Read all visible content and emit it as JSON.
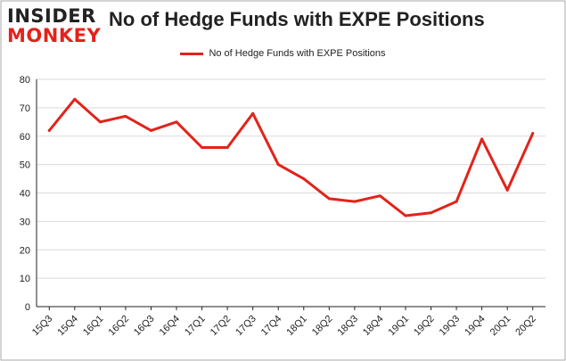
{
  "header": {
    "logo_top": "INSIDER",
    "logo_bottom": "MONKEY",
    "title": "No of Hedge Funds with EXPE Positions"
  },
  "colors": {
    "series": "#e2231a",
    "grid": "#d9d9d9",
    "axis": "#222222",
    "frame": "#aaaaaa"
  },
  "chart_data": {
    "type": "line",
    "title": "No of Hedge Funds with EXPE Positions",
    "xlabel": "",
    "ylabel": "",
    "ylim": [
      0,
      80
    ],
    "yticks": [
      0,
      10,
      20,
      30,
      40,
      50,
      60,
      70,
      80
    ],
    "grid": true,
    "legend": "top-center",
    "categories": [
      "15Q3",
      "15Q4",
      "16Q1",
      "16Q2",
      "16Q3",
      "16Q4",
      "17Q1",
      "17Q2",
      "17Q3",
      "17Q4",
      "18Q1",
      "18Q2",
      "18Q3",
      "18Q4",
      "19Q1",
      "19Q2",
      "19Q3",
      "19Q4",
      "20Q1",
      "20Q2"
    ],
    "series": [
      {
        "name": "No of Hedge Funds with EXPE Positions",
        "values": [
          62,
          73,
          65,
          67,
          62,
          65,
          56,
          56,
          68,
          50,
          45,
          38,
          37,
          39,
          32,
          33,
          37,
          59,
          41,
          61
        ]
      }
    ]
  }
}
